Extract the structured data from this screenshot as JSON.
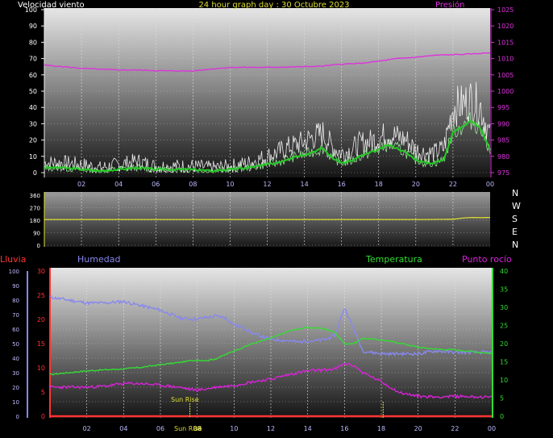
{
  "title": "24 hour graph day : 30 Octubre 2023",
  "colors": {
    "wind_speed": "#ffffff",
    "wind_avg": "#22cc22",
    "wind_gust_band": "#aaffaa",
    "pressure": "#dd33dd",
    "direction": "#dddd33",
    "rain": "#ff3333",
    "humidity": "#8888ee",
    "temperature": "#33dd33",
    "dewpoint": "#dd22dd",
    "sunrise": "#dddd33"
  },
  "chart_data": [
    {
      "type": "line",
      "name": "wind-pressure",
      "ylabel": "Velocidad viento",
      "y2label": "Presión",
      "x_ticks": [
        "02",
        "04",
        "06",
        "08",
        "10",
        "12",
        "14",
        "16",
        "18",
        "20",
        "22",
        "00"
      ],
      "ylim": [
        0,
        100
      ],
      "yticks": [
        0,
        10,
        20,
        30,
        40,
        50,
        60,
        70,
        80,
        90,
        100
      ],
      "y2lim": [
        975,
        1025
      ],
      "y2ticks": [
        975,
        980,
        985,
        990,
        995,
        1000,
        1005,
        1010,
        1015,
        1020,
        1025
      ],
      "grid": true,
      "series": [
        {
          "key": "wind_speed",
          "axis": "left",
          "x": [
            0,
            1,
            2,
            3,
            4,
            5,
            6,
            7,
            8,
            9,
            10,
            11,
            12,
            12.5,
            13,
            13.5,
            14,
            14.5,
            15,
            15.5,
            16,
            16.5,
            17,
            17.5,
            18,
            18.5,
            19,
            19.5,
            20,
            20.5,
            21,
            21.5,
            22,
            22.5,
            23,
            23.5,
            24
          ],
          "y": [
            6,
            6,
            5,
            3,
            5,
            7,
            4,
            4,
            4,
            3,
            4,
            6,
            10,
            12,
            15,
            17,
            19,
            22,
            24,
            16,
            12,
            14,
            18,
            19,
            21,
            24,
            22,
            20,
            14,
            12,
            12,
            15,
            40,
            42,
            45,
            40,
            22
          ]
        },
        {
          "key": "wind_avg",
          "axis": "left",
          "x": [
            0,
            1,
            2,
            3,
            4,
            5,
            6,
            7,
            8,
            9,
            10,
            11,
            12,
            12.5,
            13,
            13.5,
            14,
            14.5,
            15,
            15.5,
            16,
            16.5,
            17,
            17.5,
            18,
            18.5,
            19,
            19.5,
            20,
            20.5,
            21,
            21.5,
            22,
            22.5,
            23,
            23.5,
            24
          ],
          "y": [
            3,
            3,
            2,
            1,
            2,
            3,
            2,
            2,
            2,
            1,
            2,
            3,
            5,
            6,
            8,
            10,
            11,
            13,
            15,
            9,
            6,
            7,
            10,
            12,
            14,
            17,
            15,
            12,
            8,
            6,
            6,
            8,
            25,
            28,
            32,
            27,
            14
          ]
        },
        {
          "key": "pressure",
          "axis": "right",
          "x": [
            0,
            1,
            2,
            3,
            4,
            5,
            6,
            7,
            8,
            9,
            10,
            11,
            12,
            13,
            14,
            15,
            16,
            17,
            18,
            19,
            20,
            21,
            22,
            23,
            24
          ],
          "y": [
            1008,
            1007.5,
            1007,
            1006.7,
            1006.5,
            1006.5,
            1006.3,
            1006.2,
            1006.2,
            1006.8,
            1007.3,
            1007.3,
            1007.3,
            1007.4,
            1007.5,
            1007.7,
            1008.3,
            1008.5,
            1009.2,
            1010,
            1010.4,
            1011,
            1011.2,
            1011.4,
            1011.8
          ]
        }
      ]
    },
    {
      "type": "line",
      "name": "wind-direction",
      "right_labels": [
        "N",
        "W",
        "S",
        "E",
        "N"
      ],
      "x_ticks": [
        "02",
        "04",
        "06",
        "08",
        "10",
        "12",
        "14",
        "16",
        "18",
        "20",
        "22",
        "00"
      ],
      "ylim": [
        0,
        360
      ],
      "yticks": [
        0,
        90,
        180,
        270,
        360
      ],
      "grid": true,
      "series": [
        {
          "key": "direction",
          "axis": "left",
          "x": [
            0,
            2,
            4,
            6,
            8,
            10,
            12,
            14,
            16,
            18,
            20,
            22,
            22.5,
            23,
            23.5,
            24
          ],
          "y": [
            185,
            185,
            185,
            185,
            185,
            185,
            185,
            185,
            185,
            185,
            185,
            187,
            195,
            200,
            198,
            200
          ]
        }
      ]
    },
    {
      "type": "line",
      "name": "temp-humidity-rain",
      "legend": [
        "Lluvia",
        "Humedad",
        "Temperatura",
        "Punto rocío"
      ],
      "x_ticks": [
        "02",
        "04",
        "06",
        "08",
        "10",
        "12",
        "14",
        "16",
        "18",
        "20",
        "22",
        "00"
      ],
      "ylim_rain": [
        0,
        30
      ],
      "yticks_rain": [
        0,
        5,
        10,
        15,
        20,
        25,
        30
      ],
      "ylim_humidity": [
        0,
        100
      ],
      "yticks_humidity": [
        0,
        10,
        20,
        30,
        40,
        50,
        60,
        70,
        80,
        90,
        100
      ],
      "ylim_temperature": [
        0,
        40
      ],
      "yticks_temperature": [
        0,
        5,
        10,
        15,
        20,
        25,
        30,
        35,
        40
      ],
      "annotations": [
        "Sun Rise",
        "Sun Rise",
        "08"
      ],
      "grid": true,
      "series": [
        {
          "key": "humidity",
          "axis": "humidity",
          "x": [
            0,
            1,
            2,
            3,
            4,
            5,
            6,
            7,
            7.5,
            8,
            8.5,
            9,
            9.5,
            10,
            10.5,
            11,
            12,
            13,
            13.5,
            14,
            14.5,
            15,
            15.5,
            16,
            16.5,
            17,
            18,
            19,
            20,
            21,
            22,
            23,
            24
          ],
          "y": [
            82,
            80,
            78,
            78,
            79,
            76,
            73,
            68,
            67,
            67,
            68,
            69,
            68,
            63,
            61,
            57,
            53,
            52,
            51,
            52,
            52,
            53,
            56,
            75,
            60,
            45,
            43,
            43,
            43,
            45,
            44,
            44,
            44
          ]
        },
        {
          "key": "temperature",
          "axis": "temperature",
          "x": [
            0,
            1,
            2,
            3,
            4,
            5,
            6,
            7,
            7.5,
            8,
            8.5,
            9,
            10,
            11,
            12,
            13,
            14,
            15,
            15.5,
            16,
            16.5,
            17,
            18,
            19,
            20,
            21,
            22,
            23,
            24
          ],
          "y": [
            11.5,
            12,
            12.5,
            12.8,
            13,
            13.5,
            14.2,
            14.8,
            15.2,
            15.5,
            15.3,
            15.8,
            18,
            20,
            21.5,
            23.5,
            24.5,
            24,
            23,
            20,
            20,
            21.5,
            21,
            20.2,
            19,
            18.5,
            18.3,
            17.8,
            17.3
          ]
        },
        {
          "key": "dewpoint",
          "axis": "temperature",
          "x": [
            0,
            1,
            2,
            3,
            4,
            5,
            6,
            7,
            7.5,
            8,
            8.5,
            9,
            10,
            11,
            12,
            13,
            14,
            15,
            15.5,
            16,
            16.5,
            17,
            18,
            19,
            20,
            21,
            22,
            23,
            24
          ],
          "y": [
            8,
            8,
            8,
            8.3,
            9,
            9,
            8.5,
            8,
            7.5,
            7.2,
            7.5,
            8,
            8.5,
            9.5,
            10.2,
            11.5,
            12.5,
            12.8,
            13,
            14.5,
            14,
            12,
            9.5,
            6.5,
            5.5,
            5.3,
            5.5,
            5.4,
            5.2
          ]
        },
        {
          "key": "rain",
          "axis": "rain",
          "x": [
            0,
            24
          ],
          "y": [
            0,
            0
          ]
        }
      ]
    }
  ]
}
